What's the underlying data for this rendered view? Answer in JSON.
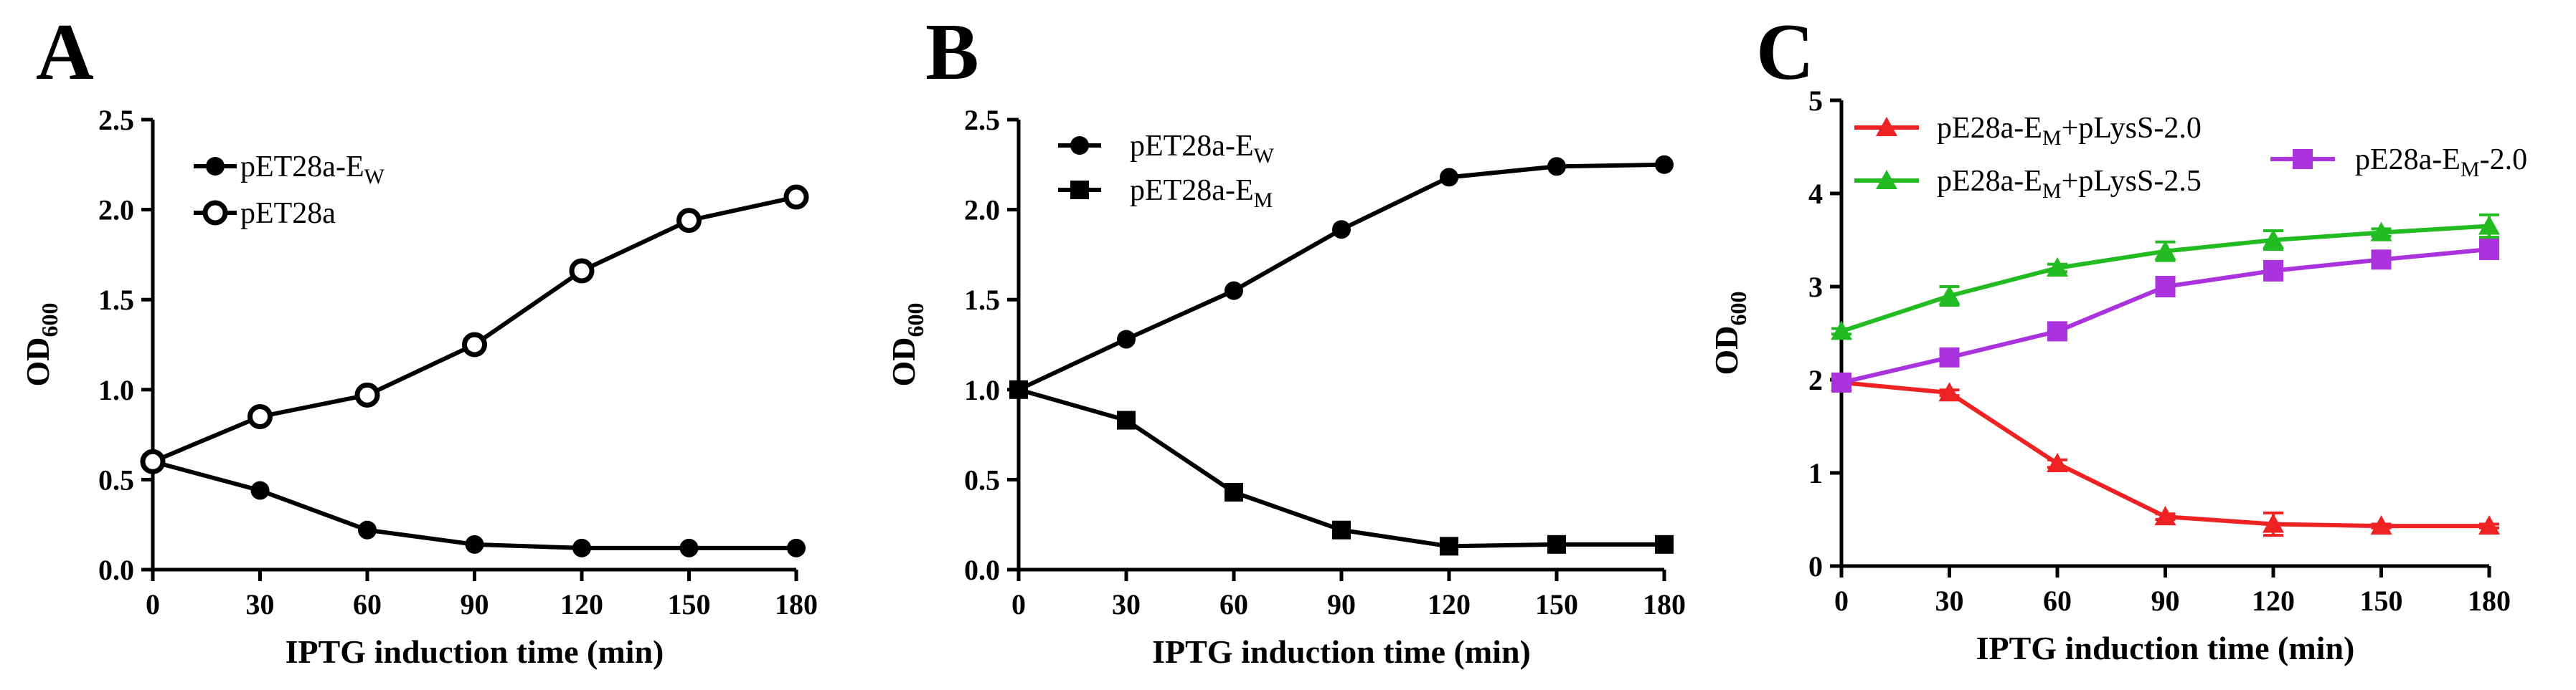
{
  "chart_data": [
    {
      "type": "line",
      "panel_letter": "A",
      "xlabel": "IPTG induction time (min)",
      "ylabel": "OD",
      "ylabel_sub": "600",
      "x": [
        0,
        30,
        60,
        90,
        120,
        150,
        180
      ],
      "xticks": [
        "0",
        "30",
        "60",
        "90",
        "120",
        "150",
        "180"
      ],
      "yticks": [
        "0.0",
        "0.5",
        "1.0",
        "1.5",
        "2.0",
        "2.5"
      ],
      "xlim": [
        0,
        180
      ],
      "ylim": [
        0,
        2.5
      ],
      "legend_position": "top-left",
      "series": [
        {
          "name": "pET28a-E",
          "name_sub": "W",
          "marker": "filled-circle",
          "color": "#000000",
          "values": [
            0.6,
            0.44,
            0.22,
            0.14,
            0.12,
            0.12,
            0.12
          ]
        },
        {
          "name": "pET28a",
          "name_sub": "",
          "marker": "open-circle",
          "color": "#000000",
          "values": [
            0.6,
            0.85,
            0.97,
            1.25,
            1.66,
            1.94,
            2.07
          ]
        }
      ]
    },
    {
      "type": "line",
      "panel_letter": "B",
      "xlabel": "IPTG induction time (min)",
      "ylabel": "OD",
      "ylabel_sub": "600",
      "x": [
        0,
        30,
        60,
        90,
        120,
        150,
        180
      ],
      "xticks": [
        "0",
        "30",
        "60",
        "90",
        "120",
        "150",
        "180"
      ],
      "yticks": [
        "0.0",
        "0.5",
        "1.0",
        "1.5",
        "2.0",
        "2.5"
      ],
      "xlim": [
        0,
        180
      ],
      "ylim": [
        0,
        2.5
      ],
      "legend_position": "top-left",
      "series": [
        {
          "name": "pET28a-E",
          "name_sub": "W",
          "marker": "filled-circle",
          "color": "#000000",
          "values": [
            1.0,
            1.28,
            1.55,
            1.89,
            2.18,
            2.24,
            2.25
          ]
        },
        {
          "name": "pET28a-E",
          "name_sub": "M",
          "marker": "filled-square",
          "color": "#000000",
          "values": [
            1.0,
            0.83,
            0.43,
            0.22,
            0.13,
            0.14,
            0.14
          ]
        }
      ]
    },
    {
      "type": "line",
      "panel_letter": "C",
      "xlabel": "IPTG induction time (min)",
      "ylabel": "OD",
      "ylabel_sub": "600",
      "x": [
        0,
        30,
        60,
        90,
        120,
        150,
        180
      ],
      "xticks": [
        "0",
        "30",
        "60",
        "90",
        "120",
        "150",
        "180"
      ],
      "yticks": [
        "0",
        "1",
        "2",
        "3",
        "4",
        "5"
      ],
      "xlim": [
        0,
        180
      ],
      "ylim": [
        0,
        5
      ],
      "legend_position": "top",
      "series": [
        {
          "name": "pE28a-E",
          "name_sub": "M",
          "name_suffix": "+pLysS-2.0",
          "marker": "triangle",
          "color": "#ee2222",
          "values": [
            1.97,
            1.86,
            1.1,
            0.53,
            0.45,
            0.43,
            0.43
          ],
          "errors": [
            0.02,
            0.03,
            0.04,
            0.03,
            0.12,
            0.02,
            0.02
          ]
        },
        {
          "name": "pE28a-E",
          "name_sub": "M",
          "name_suffix": "+pLysS-2.5",
          "marker": "triangle",
          "color": "#22bb22",
          "values": [
            2.52,
            2.9,
            3.2,
            3.38,
            3.5,
            3.58,
            3.65
          ],
          "errors": [
            0.03,
            0.1,
            0.04,
            0.1,
            0.1,
            0.04,
            0.12
          ]
        },
        {
          "name": "pE28a-E",
          "name_sub": "M",
          "name_suffix": "-2.0",
          "marker": "square",
          "color": "#aa33dd",
          "values": [
            1.97,
            2.24,
            2.52,
            3.0,
            3.17,
            3.29,
            3.4
          ],
          "errors": [
            0.03,
            0.04,
            0.05,
            0.1,
            0.1,
            0.05,
            0.1
          ]
        }
      ]
    }
  ]
}
